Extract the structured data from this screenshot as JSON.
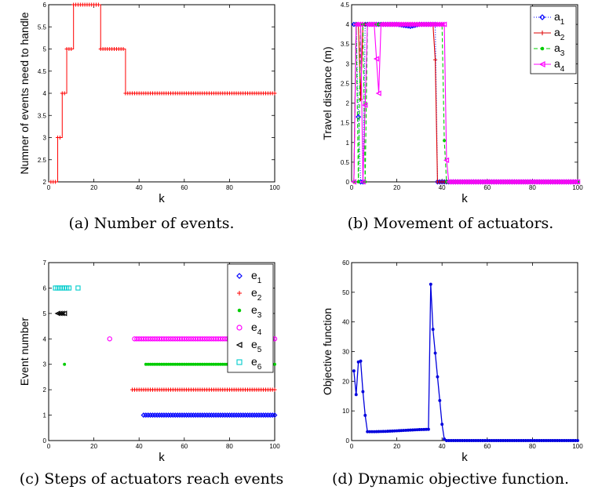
{
  "captions": {
    "a": "(a) Number of events.",
    "b": "(b) Movement of actuators.",
    "c": "(c) Steps of actuators reach events",
    "d": "(d) Dynamic objective function."
  },
  "chart_data": [
    {
      "id": "a",
      "type": "line",
      "xlabel": "k",
      "ylabel": "Numner of events need to handle",
      "xlim": [
        0,
        100
      ],
      "ylim": [
        2,
        6
      ],
      "xticks": [
        0,
        20,
        40,
        60,
        80,
        100
      ],
      "yticks": [
        2,
        2.5,
        3,
        3.5,
        4,
        4.5,
        5,
        5.5,
        6
      ],
      "series": [
        {
          "color": "#ff0000",
          "marker": "plus",
          "segments": [
            [
              1,
              3,
              2
            ],
            [
              4,
              5,
              3
            ],
            [
              6,
              7,
              4
            ],
            [
              8,
              10,
              5
            ],
            [
              11,
              22,
              6
            ],
            [
              23,
              33,
              5
            ],
            [
              34,
              100,
              4
            ]
          ]
        }
      ]
    },
    {
      "id": "b",
      "type": "line",
      "xlabel": "k",
      "ylabel": "Travel distance (m)",
      "xlim": [
        0,
        100
      ],
      "ylim": [
        0,
        4.5
      ],
      "xticks": [
        0,
        20,
        40,
        60,
        80,
        100
      ],
      "yticks": [
        0,
        0.5,
        1,
        1.5,
        2,
        2.5,
        3,
        3.5,
        4,
        4.5
      ],
      "legend": {
        "position": "top-right",
        "entries": [
          {
            "base": "a",
            "sub": "1",
            "color": "#0000ff",
            "marker": "diamond",
            "dash": "1,2"
          },
          {
            "base": "a",
            "sub": "2",
            "color": "#dd0000",
            "marker": "plus",
            "dash": ""
          },
          {
            "base": "a",
            "sub": "3",
            "color": "#00cc00",
            "marker": "dot",
            "dash": "5,3"
          },
          {
            "base": "a",
            "sub": "4",
            "color": "#ff00ff",
            "marker": "triangle-left",
            "dash": ""
          }
        ]
      },
      "series": [
        {
          "name": "a1",
          "points": [
            [
              1,
              4
            ],
            [
              2,
              4
            ],
            [
              3,
              1.65
            ],
            [
              4,
              0
            ],
            [
              5,
              0
            ],
            [
              6,
              4
            ],
            [
              10,
              4
            ],
            [
              20,
              4
            ],
            [
              26,
              3.95
            ],
            [
              30,
              4
            ],
            [
              37,
              4
            ],
            [
              38,
              0
            ],
            [
              100,
              0
            ]
          ]
        },
        {
          "name": "a2",
          "points": [
            [
              1,
              0
            ],
            [
              2,
              4
            ],
            [
              3,
              4
            ],
            [
              4,
              2.1
            ],
            [
              5,
              4
            ],
            [
              6,
              4
            ],
            [
              20,
              4
            ],
            [
              36,
              4
            ],
            [
              37,
              3.1
            ],
            [
              38,
              0
            ],
            [
              100,
              0
            ]
          ]
        },
        {
          "name": "a3",
          "points": [
            [
              1,
              0
            ],
            [
              2,
              4
            ],
            [
              3,
              0
            ],
            [
              4,
              4
            ],
            [
              5,
              4
            ],
            [
              6,
              0
            ],
            [
              7,
              4
            ],
            [
              20,
              4
            ],
            [
              40,
              4
            ],
            [
              41,
              1.05
            ],
            [
              42,
              0
            ],
            [
              100,
              0
            ]
          ]
        },
        {
          "name": "a4",
          "points": [
            [
              1,
              0
            ],
            [
              2,
              4
            ],
            [
              4,
              4
            ],
            [
              5,
              0
            ],
            [
              6,
              1.95
            ],
            [
              7,
              4
            ],
            [
              10,
              4
            ],
            [
              12,
              2.25
            ],
            [
              13,
              4
            ],
            [
              20,
              4
            ],
            [
              41,
              4
            ],
            [
              42,
              0.55
            ],
            [
              43,
              0
            ],
            [
              100,
              0
            ]
          ]
        }
      ]
    },
    {
      "id": "c",
      "type": "scatter",
      "xlabel": "k",
      "ylabel": "Event number",
      "xlim": [
        0,
        100
      ],
      "ylim": [
        0,
        7
      ],
      "xticks": [
        0,
        20,
        40,
        60,
        80,
        100
      ],
      "yticks": [
        0,
        1,
        2,
        3,
        4,
        5,
        6,
        7
      ],
      "legend": {
        "position": "top-right",
        "entries": [
          {
            "base": "e",
            "sub": "1",
            "color": "#0000ff",
            "marker": "diamond"
          },
          {
            "base": "e",
            "sub": "2",
            "color": "#ff0000",
            "marker": "plus"
          },
          {
            "base": "e",
            "sub": "3",
            "color": "#00cc00",
            "marker": "dot"
          },
          {
            "base": "e",
            "sub": "4",
            "color": "#ff00ff",
            "marker": "circle"
          },
          {
            "base": "e",
            "sub": "5",
            "color": "#000000",
            "marker": "triangle-left"
          },
          {
            "base": "e",
            "sub": "6",
            "color": "#00cccc",
            "marker": "square"
          }
        ]
      },
      "series": [
        {
          "name": "e1",
          "y": 1,
          "x_ranges": [
            [
              42,
              100
            ]
          ]
        },
        {
          "name": "e2",
          "y": 2,
          "x_ranges": [
            [
              37,
              100
            ]
          ]
        },
        {
          "name": "e3",
          "y": 3,
          "x_ranges": [
            [
              7,
              7
            ],
            [
              43,
              100
            ]
          ]
        },
        {
          "name": "e4",
          "y": 4,
          "x_ranges": [
            [
              27,
              27
            ],
            [
              38,
              100
            ]
          ]
        },
        {
          "name": "e5",
          "y": 5,
          "x_ranges": [
            [
              4,
              7
            ]
          ]
        },
        {
          "name": "e6",
          "y": 6,
          "x_ranges": [
            [
              3,
              9
            ],
            [
              13,
              13
            ]
          ]
        }
      ]
    },
    {
      "id": "d",
      "type": "line",
      "xlabel": "k",
      "ylabel": "Objective function",
      "xlim": [
        0,
        100
      ],
      "ylim": [
        0,
        60
      ],
      "xticks": [
        0,
        20,
        40,
        60,
        80,
        100
      ],
      "yticks": [
        0,
        10,
        20,
        30,
        40,
        50,
        60
      ],
      "series": [
        {
          "color": "#0000dd",
          "marker": "dot",
          "points": [
            [
              1,
              23.5
            ],
            [
              2,
              15.5
            ],
            [
              3,
              26.5
            ],
            [
              4,
              26.8
            ],
            [
              5,
              16.5
            ],
            [
              6,
              8.5
            ],
            [
              7,
              3
            ],
            [
              10,
              3
            ],
            [
              15,
              3.1
            ],
            [
              20,
              3.3
            ],
            [
              25,
              3.5
            ],
            [
              30,
              3.7
            ],
            [
              34,
              3.8
            ],
            [
              35,
              52.7
            ],
            [
              36,
              37.5
            ],
            [
              37,
              29.5
            ],
            [
              38,
              21.5
            ],
            [
              39,
              13.5
            ],
            [
              40,
              5.5
            ],
            [
              41,
              0.5
            ],
            [
              42,
              0
            ],
            [
              100,
              0
            ]
          ]
        }
      ]
    }
  ]
}
